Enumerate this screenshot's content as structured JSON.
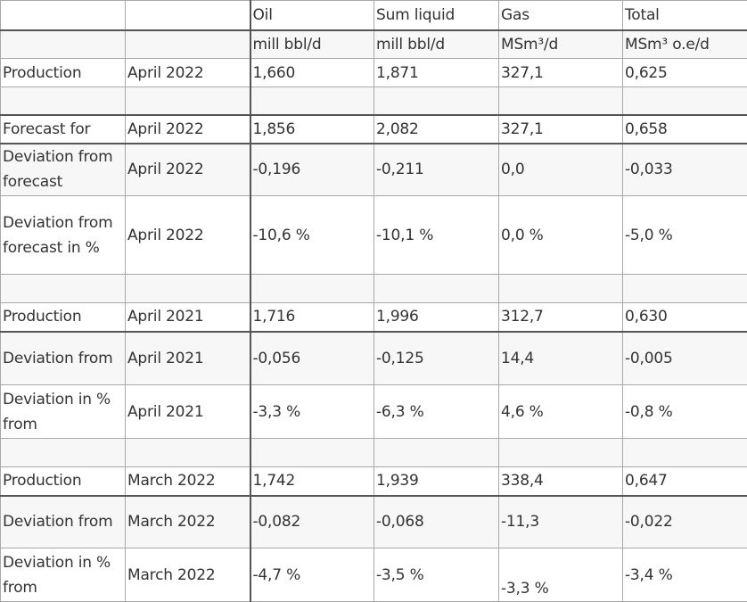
{
  "header": {
    "columns": [
      "",
      "",
      "Oil",
      "Sum liquid",
      "Gas",
      "Total"
    ],
    "units": [
      "",
      "",
      "mill bbl/d",
      "mill bbl/d",
      "MSm³/d",
      "MSm³ o.e/d"
    ]
  },
  "rows": [
    {
      "label": "Production",
      "period": "April 2022",
      "oil": "1,660",
      "liquid": "1,871",
      "gas": "327,1",
      "total": "0,625"
    },
    {
      "label": "",
      "period": "",
      "oil": "",
      "liquid": "",
      "gas": "",
      "total": ""
    },
    {
      "label": "Forecast for",
      "period": "April 2022",
      "oil": "1,856",
      "liquid": "2,082",
      "gas": "327,1",
      "total": "0,658"
    },
    {
      "label": "Deviation from forecast",
      "period": "April 2022",
      "oil": "-0,196",
      "liquid": "-0,211",
      "gas": "0,0",
      "total": "-0,033"
    },
    {
      "label": "Deviation from forecast in %",
      "period": "April 2022",
      "oil": "-10,6 %",
      "liquid": "-10,1 %",
      "gas": "0,0 %",
      "total": "-5,0 %"
    },
    {
      "label": "",
      "period": "",
      "oil": "",
      "liquid": "",
      "gas": "",
      "total": ""
    },
    {
      "label": "Production",
      "period": "April 2021",
      "oil": "1,716",
      "liquid": "1,996",
      "gas": "312,7",
      "total": "0,630"
    },
    {
      "label": "Deviation from",
      "period": "April 2021",
      "oil": "-0,056",
      "liquid": "-0,125",
      "gas": "14,4",
      "total": "-0,005"
    },
    {
      "label": "Deviation in % from",
      "period": "April 2021",
      "oil": "-3,3 %",
      "liquid": "-6,3 %",
      "gas": "4,6 %",
      "total": "-0,8 %"
    },
    {
      "label": "",
      "period": "",
      "oil": "",
      "liquid": "",
      "gas": "",
      "total": ""
    },
    {
      "label": "Production",
      "period": "March 2022",
      "oil": "1,742",
      "liquid": "1,939",
      "gas": "338,4",
      "total": "0,647"
    },
    {
      "label": "Deviation from",
      "period": "March 2022",
      "oil": "-0,082",
      "liquid": "-0,068",
      "gas": "-11,3",
      "total": "-0,022"
    },
    {
      "label": "Deviation in % from",
      "period": "March 2022",
      "oil": "-4,7 %",
      "liquid": "-3,5 %",
      "gas": "-3,3 %",
      "total": "-3,4 %"
    }
  ]
}
